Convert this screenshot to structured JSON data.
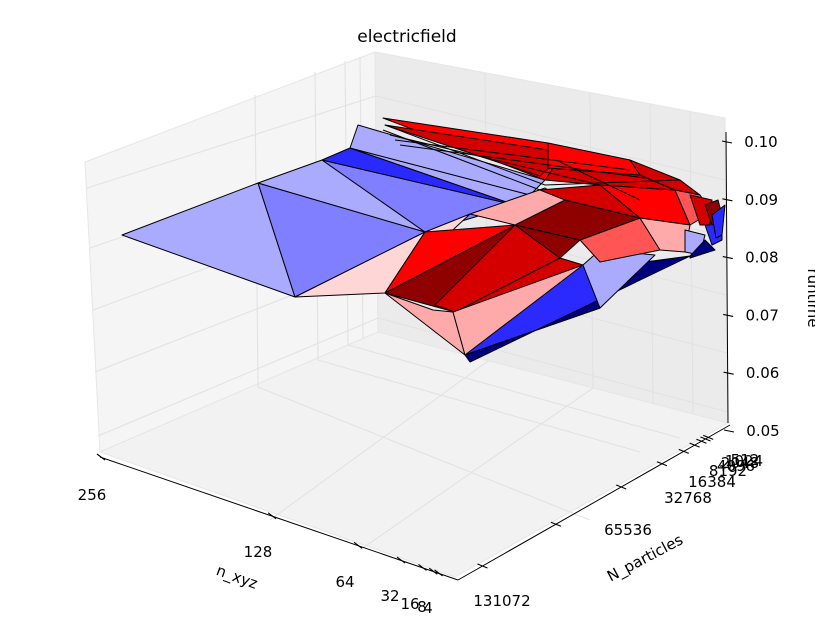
{
  "chart_data": {
    "type": "surface3d",
    "title": "electricfield",
    "xlabel": "n_xyz",
    "ylabel": "N_particles",
    "zlabel": "runtime",
    "x_ticks": [
      "256",
      "128",
      "64",
      "32",
      "16",
      "8",
      "4"
    ],
    "y_ticks": [
      "131072",
      "65536",
      "32768",
      "16384",
      "8192",
      "4096",
      "2048",
      "1024",
      "512"
    ],
    "z_ticks": [
      "0.05",
      "0.06",
      "0.07",
      "0.08",
      "0.09",
      "0.10"
    ],
    "zlim": [
      0.05,
      0.1
    ],
    "colormap": "bwr",
    "colors": {
      "dark_blue": "#00007f",
      "blue": "#2a2aff",
      "mid_blue": "#7f7fff",
      "light_blue": "#aaaaff",
      "pale": "#ffd6d6",
      "light_red": "#ffaaaa",
      "red": "#ff0000",
      "mid_red": "#d40000",
      "dark_red": "#8f0000"
    }
  }
}
